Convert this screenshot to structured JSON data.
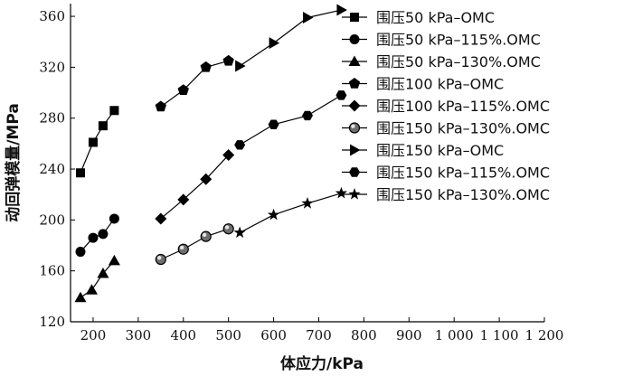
{
  "chart_data": {
    "type": "line",
    "xlabel": "体应力/kPa",
    "ylabel": "动回弹模量/MPa",
    "xlim": [
      150,
      1200
    ],
    "ylim": [
      120,
      370
    ],
    "x_ticks": [
      200,
      300,
      400,
      500,
      600,
      700,
      800,
      900,
      1000,
      1100,
      1200
    ],
    "x_tick_labels": [
      "200",
      "300",
      "400",
      "500",
      "600",
      "700",
      "800",
      "900",
      "1 000",
      "1 100",
      "1 200"
    ],
    "y_ticks": [
      120,
      160,
      200,
      240,
      280,
      320,
      360
    ],
    "y_tick_labels": [
      "120",
      "160",
      "200",
      "240",
      "280",
      "320",
      "360"
    ],
    "legend_position": "top-right",
    "series": [
      {
        "name": "围压50 kPa–OMC",
        "marker": "square",
        "x": [
          172,
          200,
          222,
          247
        ],
        "y": [
          237,
          261,
          274,
          286
        ]
      },
      {
        "name": "围压50 kPa–115%.OMC",
        "marker": "circle",
        "x": [
          172,
          200,
          222,
          247
        ],
        "y": [
          175,
          186,
          189,
          201
        ]
      },
      {
        "name": "围压50 kPa–130%.OMC",
        "marker": "triangle",
        "x": [
          172,
          197,
          222,
          247
        ],
        "y": [
          139,
          145,
          158,
          168
        ]
      },
      {
        "name": "围压100 kPa–OMC",
        "marker": "pentagon",
        "x": [
          350,
          400,
          450,
          500
        ],
        "y": [
          289,
          302,
          320,
          325
        ]
      },
      {
        "name": "围压100 kPa–115%.OMC",
        "marker": "diamond",
        "x": [
          350,
          400,
          450,
          500
        ],
        "y": [
          201,
          216,
          232,
          251
        ]
      },
      {
        "name": "围压150 kPa–130%.OMC",
        "marker": "shaded-circle",
        "x": [
          350,
          400,
          450,
          500
        ],
        "y": [
          169,
          177,
          187,
          193
        ]
      },
      {
        "name": "围压150 kPa–OMC",
        "marker": "triangle-right",
        "x": [
          525,
          600,
          675,
          750
        ],
        "y": [
          321,
          339,
          359,
          365
        ]
      },
      {
        "name": "围压150 kPa–115%.OMC",
        "marker": "hexagon",
        "x": [
          525,
          600,
          675,
          750
        ],
        "y": [
          259,
          275,
          282,
          298
        ]
      },
      {
        "name": "围压150 kPa–130%.OMC",
        "marker": "star",
        "x": [
          525,
          600,
          675,
          750
        ],
        "y": [
          190,
          204,
          213,
          221
        ]
      }
    ]
  }
}
